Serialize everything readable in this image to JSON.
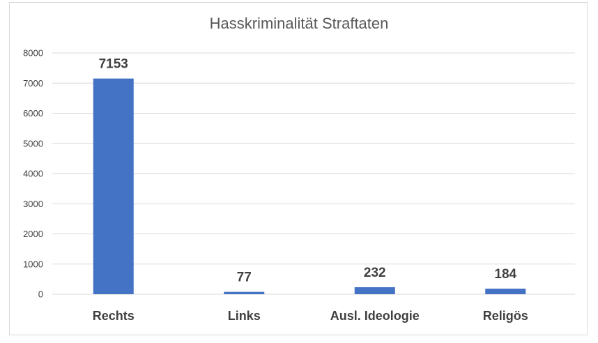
{
  "chart_data": {
    "type": "bar",
    "title": "Hasskriminalität Straftaten",
    "categories": [
      "Rechts",
      "Links",
      "Ausl. Ideologie",
      "Religös"
    ],
    "values": [
      7153,
      77,
      232,
      184
    ],
    "data_labels": [
      "7153",
      "77",
      "232",
      "184"
    ],
    "xlabel": "",
    "ylabel": "",
    "ylim": [
      0,
      8000
    ],
    "yticks": [
      0,
      1000,
      2000,
      3000,
      4000,
      5000,
      6000,
      7000,
      8000
    ],
    "ytick_labels": [
      "0",
      "1000",
      "2000",
      "3000",
      "4000",
      "5000",
      "6000",
      "7000",
      "8000"
    ],
    "grid": true,
    "legend": "none",
    "bar_color": "#4472c4"
  }
}
